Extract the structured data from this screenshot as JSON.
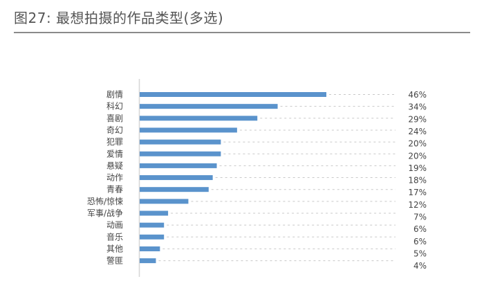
{
  "title": "图27: 最想拍摄的作品类型(多选)",
  "chart_data": {
    "type": "bar",
    "orientation": "horizontal",
    "title": "图27: 最想拍摄的作品类型(多选)",
    "categories": [
      "剧情",
      "科幻",
      "喜剧",
      "奇幻",
      "犯罪",
      "爱情",
      "悬疑",
      "动作",
      "青春",
      "恐怖/惊悚",
      "军事/战争",
      "动画",
      "音乐",
      "其他",
      "警匪"
    ],
    "values": [
      46,
      34,
      29,
      24,
      20,
      20,
      19,
      18,
      17,
      12,
      7,
      6,
      6,
      5,
      4
    ],
    "value_labels": [
      "46%",
      "34%",
      "29%",
      "24%",
      "20%",
      "20%",
      "19%",
      "18%",
      "17%",
      "12%",
      "7%",
      "6%",
      "6%",
      "5%",
      "4%"
    ],
    "unit": "%",
    "grid": false,
    "legend": "none",
    "bar_color": "#5a93cc"
  }
}
